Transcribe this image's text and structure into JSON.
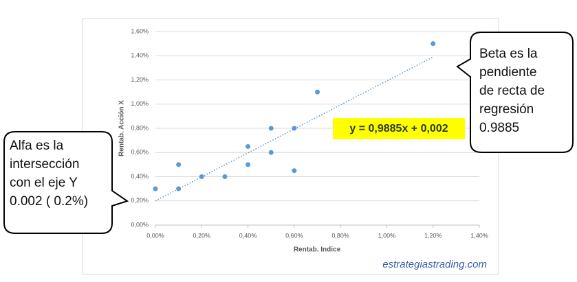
{
  "chart_data": {
    "type": "scatter",
    "x_label": "Rentab. Indice",
    "y_label": "Rentab. Acción X",
    "color": "#5b9bd5",
    "x": [
      0,
      0.1,
      0.1,
      0.2,
      0.3,
      0.4,
      0.4,
      0.5,
      0.5,
      0.6,
      0.6,
      0.7,
      1.2
    ],
    "values": [
      0.3,
      0.5,
      0.3,
      0.4,
      0.4,
      0.65,
      0.5,
      0.8,
      0.6,
      0.8,
      0.45,
      1.1,
      1.5
    ],
    "trendline": {
      "x": [
        0,
        1.2
      ],
      "y": [
        0.2,
        1.39
      ]
    },
    "equation": "y = 0,9885x + 0,002",
    "xlim": [
      0,
      1.4
    ],
    "ylim": [
      0,
      1.6
    ],
    "xticks": [
      {
        "value": 0,
        "label": "0,00%"
      },
      {
        "value": 0.2,
        "label": "0,20%"
      },
      {
        "value": 0.4,
        "label": "0,40%"
      },
      {
        "value": 0.6,
        "label": "0,60%"
      },
      {
        "value": 0.8,
        "label": "0,80%"
      },
      {
        "value": 1.0,
        "label": "1,00%"
      },
      {
        "value": 1.2,
        "label": "1,20%"
      },
      {
        "value": 1.4,
        "label": "1,40%"
      }
    ],
    "yticks": [
      {
        "value": 0,
        "label": "0,00%"
      },
      {
        "value": 0.2,
        "label": "0,20%"
      },
      {
        "value": 0.4,
        "label": "0,40%"
      },
      {
        "value": 0.6,
        "label": "0,60%"
      },
      {
        "value": 0.8,
        "label": "0,80%"
      },
      {
        "value": 1.0,
        "label": "1,00%"
      },
      {
        "value": 1.2,
        "label": "1,20%"
      },
      {
        "value": 1.4,
        "label": "1,40%"
      },
      {
        "value": 1.6,
        "label": "1,60%"
      }
    ],
    "grid": true
  },
  "callouts": [
    {
      "lines": [
        "Alfa es la",
        "intersección",
        "con el eje Y",
        "0.002 ( 0.2%)"
      ]
    },
    {
      "lines": [
        "Beta es la",
        "pendiente",
        "de recta de",
        "regresión",
        "0.9885"
      ]
    }
  ],
  "watermark": "estrategiastrading.com"
}
